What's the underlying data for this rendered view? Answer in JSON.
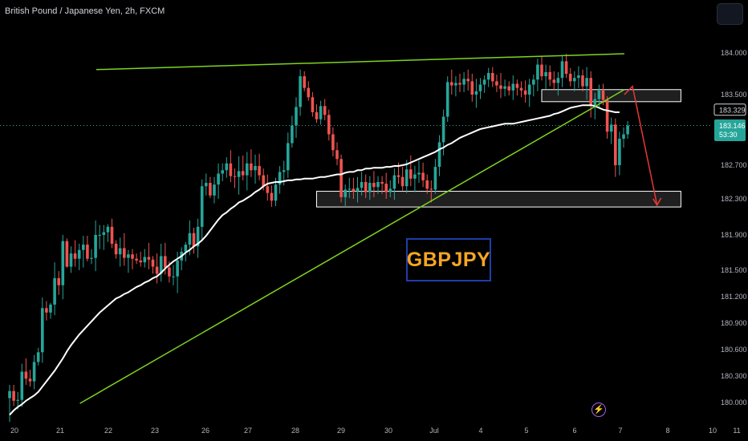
{
  "header": {
    "title": "British Pound / Japanese Yen, 2h, FXCM"
  },
  "watermark": {
    "symbol": "GBPJPY"
  },
  "icons": {
    "top_right": "layout-button",
    "bottom": "lightning-icon"
  },
  "colors": {
    "bull": "#26a69a",
    "bear": "#ef5350",
    "trendline": "#7ed321",
    "moving_average": "#ffffff",
    "projection_arrow": "#e53935",
    "zone_fill": "#2a2a2a",
    "watermark_text": "#f5a623",
    "watermark_border": "#1e3ea8"
  },
  "chart_data": {
    "type": "candlestick",
    "symbol": "GBPJPY",
    "timeframe": "2h",
    "x_tick_labels": [
      "20",
      "21",
      "22",
      "23",
      "26",
      "27",
      "28",
      "29",
      "30",
      "Jul",
      "4",
      "5",
      "6",
      "7",
      "8",
      "10",
      "11"
    ],
    "y_tick_labels": [
      "184.000",
      "183.500",
      "182.700",
      "182.300",
      "181.900",
      "181.500",
      "181.200",
      "180.900",
      "180.600",
      "180.300",
      "180.000"
    ],
    "ylim": [
      179.85,
      184.2
    ],
    "grid": false,
    "price_labels": [
      {
        "value": "183.329",
        "style": "outline"
      },
      {
        "value": "183.146",
        "sub": "53:30",
        "style": "bull"
      }
    ],
    "ohlc": [
      [
        180.05,
        180.2,
        179.78,
        180.13
      ],
      [
        180.13,
        180.2,
        179.96,
        180.02
      ],
      [
        180.02,
        180.12,
        179.92,
        180.03
      ],
      [
        180.03,
        180.44,
        179.95,
        180.35
      ],
      [
        180.35,
        180.5,
        180.2,
        180.27
      ],
      [
        180.27,
        180.37,
        180.18,
        180.24
      ],
      [
        180.24,
        180.54,
        180.15,
        180.46
      ],
      [
        180.46,
        180.62,
        180.42,
        180.57
      ],
      [
        180.57,
        181.19,
        180.45,
        181.07
      ],
      [
        181.07,
        181.15,
        180.93,
        181.02
      ],
      [
        181.02,
        181.13,
        180.95,
        181.11
      ],
      [
        181.11,
        181.59,
        180.99,
        181.41
      ],
      [
        181.41,
        181.49,
        181.22,
        181.33
      ],
      [
        181.33,
        181.9,
        181.17,
        181.83
      ],
      [
        181.83,
        181.86,
        181.53,
        181.54
      ],
      [
        181.54,
        181.77,
        181.47,
        181.69
      ],
      [
        181.69,
        181.84,
        181.54,
        181.63
      ],
      [
        181.63,
        181.8,
        181.5,
        181.73
      ],
      [
        181.73,
        181.89,
        181.53,
        181.79
      ],
      [
        181.79,
        181.89,
        181.6,
        181.63
      ],
      [
        181.63,
        181.74,
        181.57,
        181.64
      ],
      [
        181.64,
        182.06,
        181.49,
        181.9
      ],
      [
        181.9,
        182.01,
        181.74,
        181.9
      ],
      [
        181.9,
        182.01,
        181.73,
        181.93
      ],
      [
        181.93,
        182.02,
        181.82,
        181.99
      ],
      [
        181.99,
        182.08,
        181.75,
        181.8
      ],
      [
        181.8,
        181.84,
        181.63,
        181.68
      ],
      [
        181.68,
        181.87,
        181.54,
        181.75
      ],
      [
        181.75,
        181.92,
        181.55,
        181.64
      ],
      [
        181.64,
        181.73,
        181.47,
        181.68
      ],
      [
        181.68,
        181.74,
        181.51,
        181.63
      ],
      [
        181.63,
        181.69,
        181.57,
        181.61
      ],
      [
        181.61,
        181.71,
        181.54,
        181.59
      ],
      [
        181.59,
        181.74,
        181.53,
        181.65
      ],
      [
        181.65,
        181.81,
        181.51,
        181.62
      ],
      [
        181.62,
        181.66,
        181.46,
        181.54
      ],
      [
        181.54,
        181.69,
        181.35,
        181.46
      ],
      [
        181.46,
        181.8,
        181.37,
        181.66
      ],
      [
        181.66,
        181.81,
        181.45,
        181.53
      ],
      [
        181.53,
        181.6,
        181.36,
        181.43
      ],
      [
        181.43,
        181.56,
        181.33,
        181.43
      ],
      [
        181.43,
        181.71,
        181.24,
        181.61
      ],
      [
        181.61,
        181.76,
        181.5,
        181.71
      ],
      [
        181.71,
        181.82,
        181.6,
        181.79
      ],
      [
        181.79,
        182.06,
        181.67,
        181.92
      ],
      [
        181.92,
        181.98,
        181.69,
        181.77
      ],
      [
        181.77,
        182.08,
        181.64,
        181.99
      ],
      [
        181.99,
        182.53,
        181.85,
        182.45
      ],
      [
        182.45,
        182.6,
        182.34,
        182.49
      ],
      [
        182.49,
        182.56,
        182.31,
        182.34
      ],
      [
        182.34,
        182.56,
        182.25,
        182.47
      ],
      [
        182.47,
        182.72,
        182.3,
        182.6
      ],
      [
        182.6,
        182.72,
        182.51,
        182.64
      ],
      [
        182.64,
        182.79,
        182.55,
        182.72
      ],
      [
        182.72,
        182.87,
        182.5,
        182.57
      ],
      [
        182.57,
        182.66,
        182.43,
        182.56
      ],
      [
        182.56,
        182.8,
        182.35,
        182.63
      ],
      [
        182.63,
        182.81,
        182.52,
        182.58
      ],
      [
        182.58,
        182.85,
        182.4,
        182.72
      ],
      [
        182.72,
        182.88,
        182.56,
        182.64
      ],
      [
        182.64,
        182.82,
        182.48,
        182.69
      ],
      [
        182.69,
        182.83,
        182.52,
        182.58
      ],
      [
        182.58,
        182.66,
        182.4,
        182.45
      ],
      [
        182.45,
        182.59,
        182.28,
        182.37
      ],
      [
        182.37,
        182.46,
        182.21,
        182.28
      ],
      [
        182.28,
        182.55,
        182.22,
        182.47
      ],
      [
        182.47,
        182.69,
        182.36,
        182.62
      ],
      [
        182.62,
        182.75,
        182.46,
        182.64
      ],
      [
        182.64,
        183.07,
        182.55,
        182.95
      ],
      [
        182.95,
        183.26,
        182.9,
        183.15
      ],
      [
        183.15,
        183.47,
        183.01,
        183.36
      ],
      [
        183.36,
        183.8,
        183.26,
        183.72
      ],
      [
        183.72,
        183.78,
        183.54,
        183.58
      ],
      [
        183.58,
        183.66,
        183.43,
        183.47
      ],
      [
        183.47,
        183.53,
        183.25,
        183.3
      ],
      [
        183.3,
        183.39,
        183.18,
        183.22
      ],
      [
        183.22,
        183.43,
        183.16,
        183.37
      ],
      [
        183.37,
        183.45,
        183.21,
        183.27
      ],
      [
        183.27,
        183.33,
        182.98,
        183.05
      ],
      [
        183.05,
        183.13,
        182.8,
        182.87
      ],
      [
        182.87,
        182.96,
        182.7,
        182.77
      ],
      [
        182.77,
        182.82,
        182.26,
        182.32
      ],
      [
        182.32,
        182.47,
        182.22,
        182.41
      ],
      [
        182.41,
        182.55,
        182.31,
        182.42
      ],
      [
        182.42,
        182.55,
        182.3,
        182.39
      ],
      [
        182.39,
        182.56,
        182.26,
        182.43
      ],
      [
        182.43,
        182.62,
        182.34,
        182.5
      ],
      [
        182.5,
        182.59,
        182.31,
        182.38
      ],
      [
        182.38,
        182.57,
        182.29,
        182.49
      ],
      [
        182.49,
        182.63,
        182.32,
        182.44
      ],
      [
        182.44,
        182.57,
        182.36,
        182.5
      ],
      [
        182.5,
        182.57,
        182.36,
        182.48
      ],
      [
        182.48,
        182.61,
        182.3,
        182.38
      ],
      [
        182.38,
        182.52,
        182.32,
        182.42
      ],
      [
        182.42,
        182.66,
        182.29,
        182.58
      ],
      [
        182.58,
        182.73,
        182.48,
        182.56
      ],
      [
        182.56,
        182.68,
        182.4,
        182.45
      ],
      [
        182.45,
        182.76,
        182.37,
        182.65
      ],
      [
        182.65,
        182.81,
        182.45,
        182.54
      ],
      [
        182.54,
        182.69,
        182.38,
        182.59
      ],
      [
        182.59,
        182.75,
        182.49,
        182.61
      ],
      [
        182.61,
        182.73,
        182.44,
        182.52
      ],
      [
        182.52,
        182.59,
        182.36,
        182.42
      ],
      [
        182.42,
        182.52,
        182.26,
        182.41
      ],
      [
        182.41,
        182.77,
        182.36,
        182.68
      ],
      [
        182.68,
        183.04,
        182.57,
        182.96
      ],
      [
        182.96,
        183.33,
        182.81,
        183.25
      ],
      [
        183.25,
        183.72,
        183.19,
        183.65
      ],
      [
        183.65,
        183.8,
        183.5,
        183.61
      ],
      [
        183.61,
        183.72,
        183.48,
        183.64
      ],
      [
        183.64,
        183.75,
        183.53,
        183.62
      ],
      [
        183.62,
        183.77,
        183.53,
        183.69
      ],
      [
        183.69,
        183.8,
        183.55,
        183.66
      ],
      [
        183.66,
        183.75,
        183.42,
        183.5
      ],
      [
        183.5,
        183.69,
        183.35,
        183.54
      ],
      [
        183.54,
        183.7,
        183.45,
        183.62
      ],
      [
        183.62,
        183.73,
        183.52,
        183.68
      ],
      [
        183.68,
        183.82,
        183.59,
        183.76
      ],
      [
        183.76,
        183.83,
        183.59,
        183.66
      ],
      [
        183.66,
        183.74,
        183.53,
        183.61
      ],
      [
        183.61,
        183.76,
        183.46,
        183.57
      ],
      [
        183.57,
        183.68,
        183.48,
        183.6
      ],
      [
        183.6,
        183.66,
        183.49,
        183.55
      ],
      [
        183.55,
        183.73,
        183.44,
        183.63
      ],
      [
        183.63,
        183.68,
        183.49,
        183.58
      ],
      [
        183.58,
        183.66,
        183.47,
        183.55
      ],
      [
        183.55,
        183.67,
        183.41,
        183.5
      ],
      [
        183.5,
        183.69,
        183.36,
        183.62
      ],
      [
        183.62,
        183.74,
        183.48,
        183.68
      ],
      [
        183.68,
        183.93,
        183.54,
        183.86
      ],
      [
        183.86,
        183.96,
        183.67,
        183.72
      ],
      [
        183.72,
        183.86,
        183.57,
        183.77
      ],
      [
        183.77,
        183.85,
        183.6,
        183.68
      ],
      [
        183.68,
        183.78,
        183.56,
        183.64
      ],
      [
        183.64,
        183.77,
        183.49,
        183.7
      ],
      [
        183.7,
        183.96,
        183.59,
        183.9
      ],
      [
        183.9,
        183.99,
        183.7,
        183.75
      ],
      [
        183.75,
        183.82,
        183.6,
        183.66
      ],
      [
        183.66,
        183.78,
        183.54,
        183.7
      ],
      [
        183.7,
        183.84,
        183.58,
        183.73
      ],
      [
        183.73,
        183.8,
        183.54,
        183.6
      ],
      [
        183.6,
        183.83,
        183.44,
        183.7
      ],
      [
        183.7,
        183.78,
        183.24,
        183.38
      ],
      [
        183.38,
        183.52,
        183.22,
        183.45
      ],
      [
        183.45,
        183.62,
        183.36,
        183.55
      ],
      [
        183.55,
        183.63,
        183.38,
        183.44
      ],
      [
        183.44,
        183.48,
        183.0,
        183.08
      ],
      [
        183.08,
        183.24,
        182.94,
        183.16
      ],
      [
        183.16,
        183.23,
        182.56,
        182.7
      ],
      [
        182.7,
        183.08,
        182.58,
        183.0
      ],
      [
        183.0,
        183.13,
        182.9,
        183.05
      ],
      [
        183.05,
        183.2,
        183.0,
        183.15
      ]
    ],
    "moving_average": [
      179.86,
      179.91,
      179.95,
      179.98,
      180.02,
      180.05,
      180.08,
      180.12,
      180.18,
      180.24,
      180.3,
      180.36,
      180.43,
      180.5,
      180.58,
      180.65,
      180.71,
      180.77,
      180.82,
      180.87,
      180.92,
      180.97,
      181.02,
      181.06,
      181.1,
      181.14,
      181.18,
      181.2,
      181.23,
      181.25,
      181.28,
      181.31,
      181.33,
      181.36,
      181.38,
      181.41,
      181.43,
      181.47,
      181.52,
      181.56,
      181.6,
      181.63,
      181.66,
      181.7,
      181.73,
      181.77,
      181.8,
      181.84,
      181.89,
      181.95,
      182.01,
      182.07,
      182.12,
      182.15,
      182.19,
      182.22,
      182.26,
      182.28,
      182.31,
      182.34,
      182.38,
      182.41,
      182.45,
      182.48,
      182.49,
      182.5,
      182.5,
      182.51,
      182.52,
      182.52,
      182.53,
      182.53,
      182.54,
      182.54,
      182.54,
      182.55,
      182.56,
      182.56,
      182.57,
      182.58,
      182.59,
      182.59,
      182.61,
      182.62,
      182.62,
      182.64,
      182.64,
      182.66,
      182.66,
      182.67,
      182.67,
      182.67,
      182.68,
      182.68,
      182.69,
      182.69,
      182.7,
      182.71,
      182.73,
      182.75,
      182.77,
      182.79,
      182.81,
      182.83,
      182.85,
      182.88,
      182.9,
      182.93,
      182.95,
      182.98,
      183.01,
      183.03,
      183.05,
      183.07,
      183.09,
      183.11,
      183.12,
      183.13,
      183.14,
      183.15,
      183.16,
      183.17,
      183.17,
      183.17,
      183.18,
      183.19,
      183.2,
      183.21,
      183.22,
      183.23,
      183.24,
      183.25,
      183.26,
      183.28,
      183.29,
      183.31,
      183.33,
      183.35,
      183.36,
      183.37,
      183.38,
      183.38,
      183.38,
      183.37,
      183.35,
      183.33,
      183.32,
      183.31,
      183.3,
      183.3
    ],
    "trendlines": [
      {
        "name": "",
        "from": [
          20,
          183.8
        ],
        "to": [
          149,
          183.99
        ]
      },
      {
        "name": "",
        "from": [
          16,
          179.99
        ],
        "to": [
          149,
          183.56
        ]
      }
    ],
    "zones": [
      {
        "from_bar": 130,
        "to_bar": 164,
        "low": 183.42,
        "high": 183.56
      },
      {
        "from_bar": 75,
        "to_bar": 164,
        "low": 182.21,
        "high": 182.39
      }
    ],
    "projection": [
      [
        149,
        183.5
      ],
      [
        151,
        183.6
      ],
      [
        157,
        182.23
      ]
    ]
  }
}
